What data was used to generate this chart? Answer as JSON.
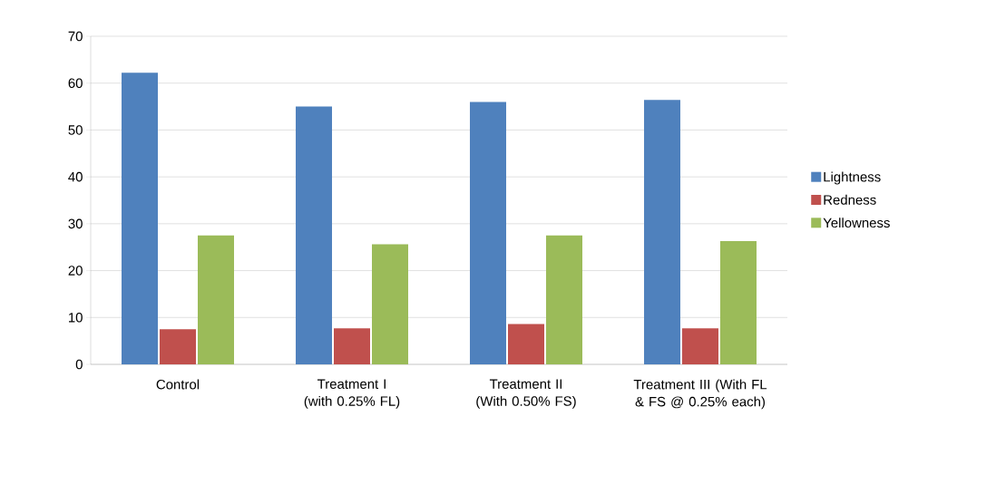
{
  "chart_data": {
    "type": "bar",
    "categories": [
      "Control",
      "Treatment I (with 0.25% FL)",
      "Treatment II (With 0.50% FS)",
      "Treatment III (With FL & FS @ 0.25% each)"
    ],
    "series": [
      {
        "name": "Lightness",
        "color": "#4f81bd",
        "values": [
          62.2,
          55.0,
          56.0,
          56.4
        ]
      },
      {
        "name": "Redness",
        "color": "#c0504d",
        "values": [
          7.5,
          7.7,
          8.6,
          7.7
        ]
      },
      {
        "name": "Yellowness",
        "color": "#9bbb59",
        "values": [
          27.5,
          25.6,
          27.5,
          26.3
        ]
      }
    ],
    "ylim": [
      0,
      70
    ],
    "yticks": [
      0,
      10,
      20,
      30,
      40,
      50,
      60,
      70
    ],
    "grid": "y",
    "legend": "right"
  }
}
